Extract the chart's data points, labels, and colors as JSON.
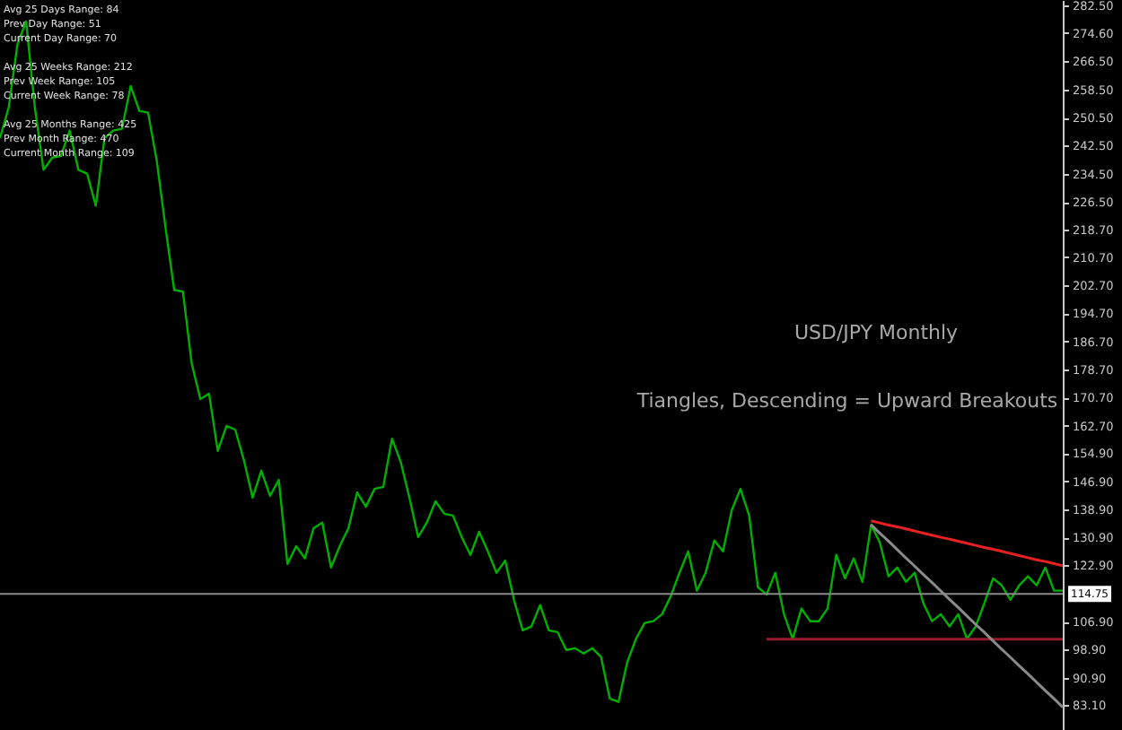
{
  "chart_data": {
    "type": "line",
    "title": "USD/JPY Monthly",
    "subtitle": "Tiangles, Descending = Upward Breakouts",
    "annotations": [
      "Avg 25 Days Range: 84",
      "Prev Day Range: 51",
      "Current Day Range: 70",
      "Avg 25 Weeks Range: 212",
      "Prev Week Range: 105",
      "Current Week Range: 78",
      "Avg 25 Months Range: 425",
      "Prev Month Range: 470",
      "Current Month Range: 109"
    ],
    "categories": [
      null,
      null,
      null,
      null,
      null,
      null,
      null,
      null,
      null,
      null,
      null,
      null,
      null,
      null,
      null,
      null,
      null,
      null,
      null,
      null,
      null,
      null,
      null,
      null,
      null,
      null,
      null,
      null,
      null,
      null,
      null,
      null,
      null,
      null,
      null,
      null,
      null,
      null,
      null,
      null,
      null,
      null,
      null,
      null,
      null,
      null,
      null,
      null,
      null,
      null,
      null,
      null,
      null,
      null,
      null,
      null,
      null,
      null,
      null,
      null,
      null,
      null,
      null,
      null,
      null,
      null,
      null,
      null,
      null,
      null,
      null,
      null,
      null,
      null,
      null,
      null,
      null,
      null,
      null,
      null,
      null,
      null,
      null,
      null,
      null,
      null,
      null,
      null,
      null,
      null,
      null,
      null,
      null,
      null,
      null,
      null,
      null,
      null,
      null,
      null,
      null,
      null,
      null,
      null,
      null,
      null,
      null,
      null,
      null,
      null,
      null,
      null,
      null,
      null,
      null,
      null,
      null,
      null,
      null,
      null,
      null,
      null,
      null
    ],
    "series": [
      {
        "color": "#00b000",
        "values": [
          244.7,
          253.4,
          271.3,
          277.9,
          253.4,
          235.6,
          239.1,
          239.6,
          246.8,
          235.6,
          234.5,
          225.4,
          244.7,
          246.8,
          247.3,
          259.5,
          252.4,
          251.9,
          238.1,
          219.2,
          201.4,
          200.9,
          180.5,
          170.3,
          171.8,
          155.5,
          162.6,
          161.6,
          152.9,
          142.2,
          149.9,
          142.7,
          147.3,
          123.3,
          128.4,
          124.9,
          133.5,
          135.1,
          122.3,
          128.4,
          133.5,
          143.7,
          139.6,
          144.7,
          145.3,
          159.0,
          152.4,
          142.2,
          131.0,
          135.1,
          141.2,
          137.6,
          137.1,
          131.0,
          125.9,
          132.5,
          126.9,
          120.8,
          124.3,
          113.1,
          104.4,
          105.5,
          111.6,
          104.4,
          103.9,
          98.8,
          99.3,
          97.8,
          99.3,
          96.8,
          85.0,
          84.0,
          95.3,
          101.9,
          106.5,
          107.0,
          109.0,
          114.1,
          120.8,
          126.9,
          115.7,
          120.8,
          130.0,
          126.9,
          138.6,
          144.7,
          137.1,
          116.7,
          114.6,
          120.8,
          109.0,
          101.9,
          110.6,
          107.0,
          107.0,
          110.6,
          125.9,
          119.2,
          124.9,
          118.2,
          134.5,
          129.4,
          119.8,
          122.3,
          118.2,
          120.8,
          112.1,
          107.0,
          109.0,
          105.5,
          109.0,
          101.9,
          105.5,
          112.1,
          119.2,
          117.2,
          113.1,
          117.2,
          119.8,
          117.2,
          122.3,
          115.7,
          115.7
        ]
      },
      {
        "color": "#e82020",
        "values": [
          null,
          null,
          null,
          null,
          null,
          null,
          null,
          null,
          null,
          null,
          null,
          null,
          null,
          null,
          null,
          null,
          null,
          null,
          null,
          null,
          null,
          null,
          null,
          null,
          null,
          null,
          null,
          null,
          null,
          null,
          null,
          null,
          null,
          null,
          null,
          null,
          null,
          null,
          null,
          null,
          null,
          null,
          null,
          null,
          null,
          null,
          null,
          null,
          null,
          null,
          null,
          null,
          null,
          null,
          null,
          null,
          null,
          null,
          null,
          null,
          null,
          null,
          null,
          null,
          null,
          null,
          null,
          null,
          null,
          null,
          null,
          null,
          null,
          null,
          null,
          null,
          null,
          null,
          null,
          null,
          null,
          null,
          null,
          null,
          null,
          null,
          null,
          null,
          null,
          null,
          null,
          null,
          null,
          null,
          null,
          null,
          null,
          null,
          null,
          null,
          135.6,
          135.0,
          134.4,
          133.9,
          133.3,
          132.7,
          132.1,
          131.5,
          130.9,
          130.4,
          129.8,
          129.2,
          128.6,
          128.0,
          127.5,
          126.9,
          126.3,
          125.7,
          125.1,
          124.5,
          124.0,
          123.4,
          122.8
        ]
      },
      {
        "color": "#9a1a2e",
        "values": [
          null,
          null,
          null,
          null,
          null,
          null,
          null,
          null,
          null,
          null,
          null,
          null,
          null,
          null,
          null,
          null,
          null,
          null,
          null,
          null,
          null,
          null,
          null,
          null,
          null,
          null,
          null,
          null,
          null,
          null,
          null,
          null,
          null,
          null,
          null,
          null,
          null,
          null,
          null,
          null,
          null,
          null,
          null,
          null,
          null,
          null,
          null,
          null,
          null,
          null,
          null,
          null,
          null,
          null,
          null,
          null,
          null,
          null,
          null,
          null,
          null,
          null,
          null,
          null,
          null,
          null,
          null,
          null,
          null,
          null,
          null,
          null,
          null,
          null,
          null,
          null,
          null,
          null,
          null,
          null,
          null,
          null,
          null,
          null,
          null,
          null,
          null,
          null,
          101.9,
          101.9,
          101.9,
          101.9,
          101.9,
          101.9,
          101.9,
          101.9,
          101.9,
          101.9,
          101.9,
          101.9,
          101.9,
          101.9,
          101.9,
          101.9,
          101.9,
          101.9,
          101.9,
          101.9,
          101.9,
          101.9,
          101.9,
          101.9,
          101.9,
          101.9,
          101.9,
          101.9,
          101.9,
          101.9,
          101.9,
          101.9,
          101.9,
          101.9,
          101.9
        ]
      },
      {
        "color": "#8a8a8a",
        "values": [
          null,
          null,
          null,
          null,
          null,
          null,
          null,
          null,
          null,
          null,
          null,
          null,
          null,
          null,
          null,
          null,
          null,
          null,
          null,
          null,
          null,
          null,
          null,
          null,
          null,
          null,
          null,
          null,
          null,
          null,
          null,
          null,
          null,
          null,
          null,
          null,
          null,
          null,
          null,
          null,
          null,
          null,
          null,
          null,
          null,
          null,
          null,
          null,
          null,
          null,
          null,
          null,
          null,
          null,
          null,
          null,
          null,
          null,
          null,
          null,
          null,
          null,
          null,
          null,
          null,
          null,
          null,
          null,
          null,
          null,
          null,
          null,
          null,
          null,
          null,
          null,
          null,
          null,
          null,
          null,
          null,
          null,
          null,
          null,
          null,
          null,
          null,
          null,
          null,
          null,
          null,
          null,
          null,
          null,
          null,
          null,
          null,
          null,
          null,
          null,
          134.5,
          132.1,
          129.8,
          127.4,
          125.0,
          122.7,
          120.3,
          118.0,
          115.6,
          113.2,
          110.9,
          108.5,
          106.1,
          103.8,
          101.4,
          99.0,
          96.7,
          94.3,
          92.0,
          89.6,
          87.2,
          84.9,
          82.5
        ]
      }
    ],
    "ref_lines": [
      {
        "axis": "y",
        "value": 114.75,
        "label": "114.75",
        "color": "#8a8a8a"
      }
    ],
    "ylim": [
      76,
      284
    ],
    "yticks": [
      {
        "value": 282.5,
        "label": "282.50"
      },
      {
        "value": 274.6,
        "label": "274.60"
      },
      {
        "value": 266.5,
        "label": "266.50"
      },
      {
        "value": 258.5,
        "label": "258.50"
      },
      {
        "value": 250.5,
        "label": "250.50"
      },
      {
        "value": 242.5,
        "label": "242.50"
      },
      {
        "value": 234.5,
        "label": "234.50"
      },
      {
        "value": 226.5,
        "label": "226.50"
      },
      {
        "value": 218.7,
        "label": "218.70"
      },
      {
        "value": 210.7,
        "label": "210.70"
      },
      {
        "value": 202.7,
        "label": "202.70"
      },
      {
        "value": 194.7,
        "label": "194.70"
      },
      {
        "value": 186.7,
        "label": "186.70"
      },
      {
        "value": 178.7,
        "label": "178.70"
      },
      {
        "value": 170.7,
        "label": "170.70"
      },
      {
        "value": 162.7,
        "label": "162.70"
      },
      {
        "value": 154.9,
        "label": "154.90"
      },
      {
        "value": 146.9,
        "label": "146.90"
      },
      {
        "value": 138.9,
        "label": "138.90"
      },
      {
        "value": 130.9,
        "label": "130.90"
      },
      {
        "value": 122.9,
        "label": "122.90"
      },
      {
        "value": 106.9,
        "label": "106.90"
      },
      {
        "value": 98.9,
        "label": "98.90"
      },
      {
        "value": 90.9,
        "label": "90.90"
      },
      {
        "value": 83.1,
        "label": "83.10"
      }
    ],
    "tick_labels": "y"
  }
}
